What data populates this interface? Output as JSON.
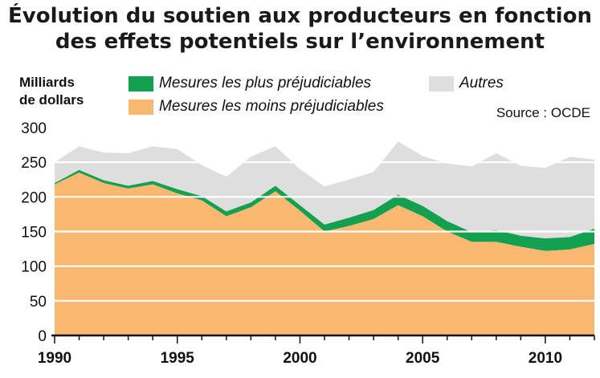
{
  "chart_data": {
    "type": "area",
    "title_line1": "Évolution du soutien aux producteurs en fonction",
    "title_line2": "des effets potentiels sur l’environnement",
    "ylabel_line1": "Milliards",
    "ylabel_line2": "de dollars",
    "source": "Source : OCDE",
    "legend": {
      "most": "Mesures les plus préjudiciables",
      "least": "Mesures les moins préjudiciables",
      "other": "Autres"
    },
    "x": [
      1990,
      1991,
      1992,
      1993,
      1994,
      1995,
      1996,
      1997,
      1998,
      1999,
      2000,
      2001,
      2002,
      2003,
      2004,
      2005,
      2006,
      2007,
      2008,
      2009,
      2010,
      2011,
      2012
    ],
    "series": [
      {
        "name": "Mesures les moins préjudiciables",
        "color": "#f8b870",
        "values": [
          218,
          235,
          220,
          212,
          218,
          205,
          195,
          172,
          185,
          208,
          180,
          150,
          158,
          168,
          188,
          172,
          150,
          135,
          135,
          128,
          122,
          124,
          132
        ]
      },
      {
        "name": "Mesures les plus préjudiciables",
        "color": "#13a150",
        "values": [
          2,
          4,
          4,
          4,
          5,
          6,
          6,
          7,
          7,
          8,
          8,
          10,
          12,
          13,
          15,
          15,
          15,
          14,
          17,
          16,
          18,
          18,
          22
        ]
      },
      {
        "name": "Autres",
        "color": "#dedede",
        "values": [
          30,
          34,
          40,
          47,
          50,
          58,
          45,
          50,
          66,
          57,
          52,
          55,
          55,
          55,
          77,
          72,
          83,
          95,
          111,
          101,
          102,
          116,
          100
        ]
      }
    ],
    "ylim": [
      0,
      300
    ],
    "yticks": [
      0,
      50,
      100,
      150,
      200,
      250,
      300
    ],
    "xticks": [
      1990,
      1995,
      2000,
      2005,
      2010
    ],
    "xlim": [
      1990,
      2012
    ],
    "grid": "horizontal"
  }
}
